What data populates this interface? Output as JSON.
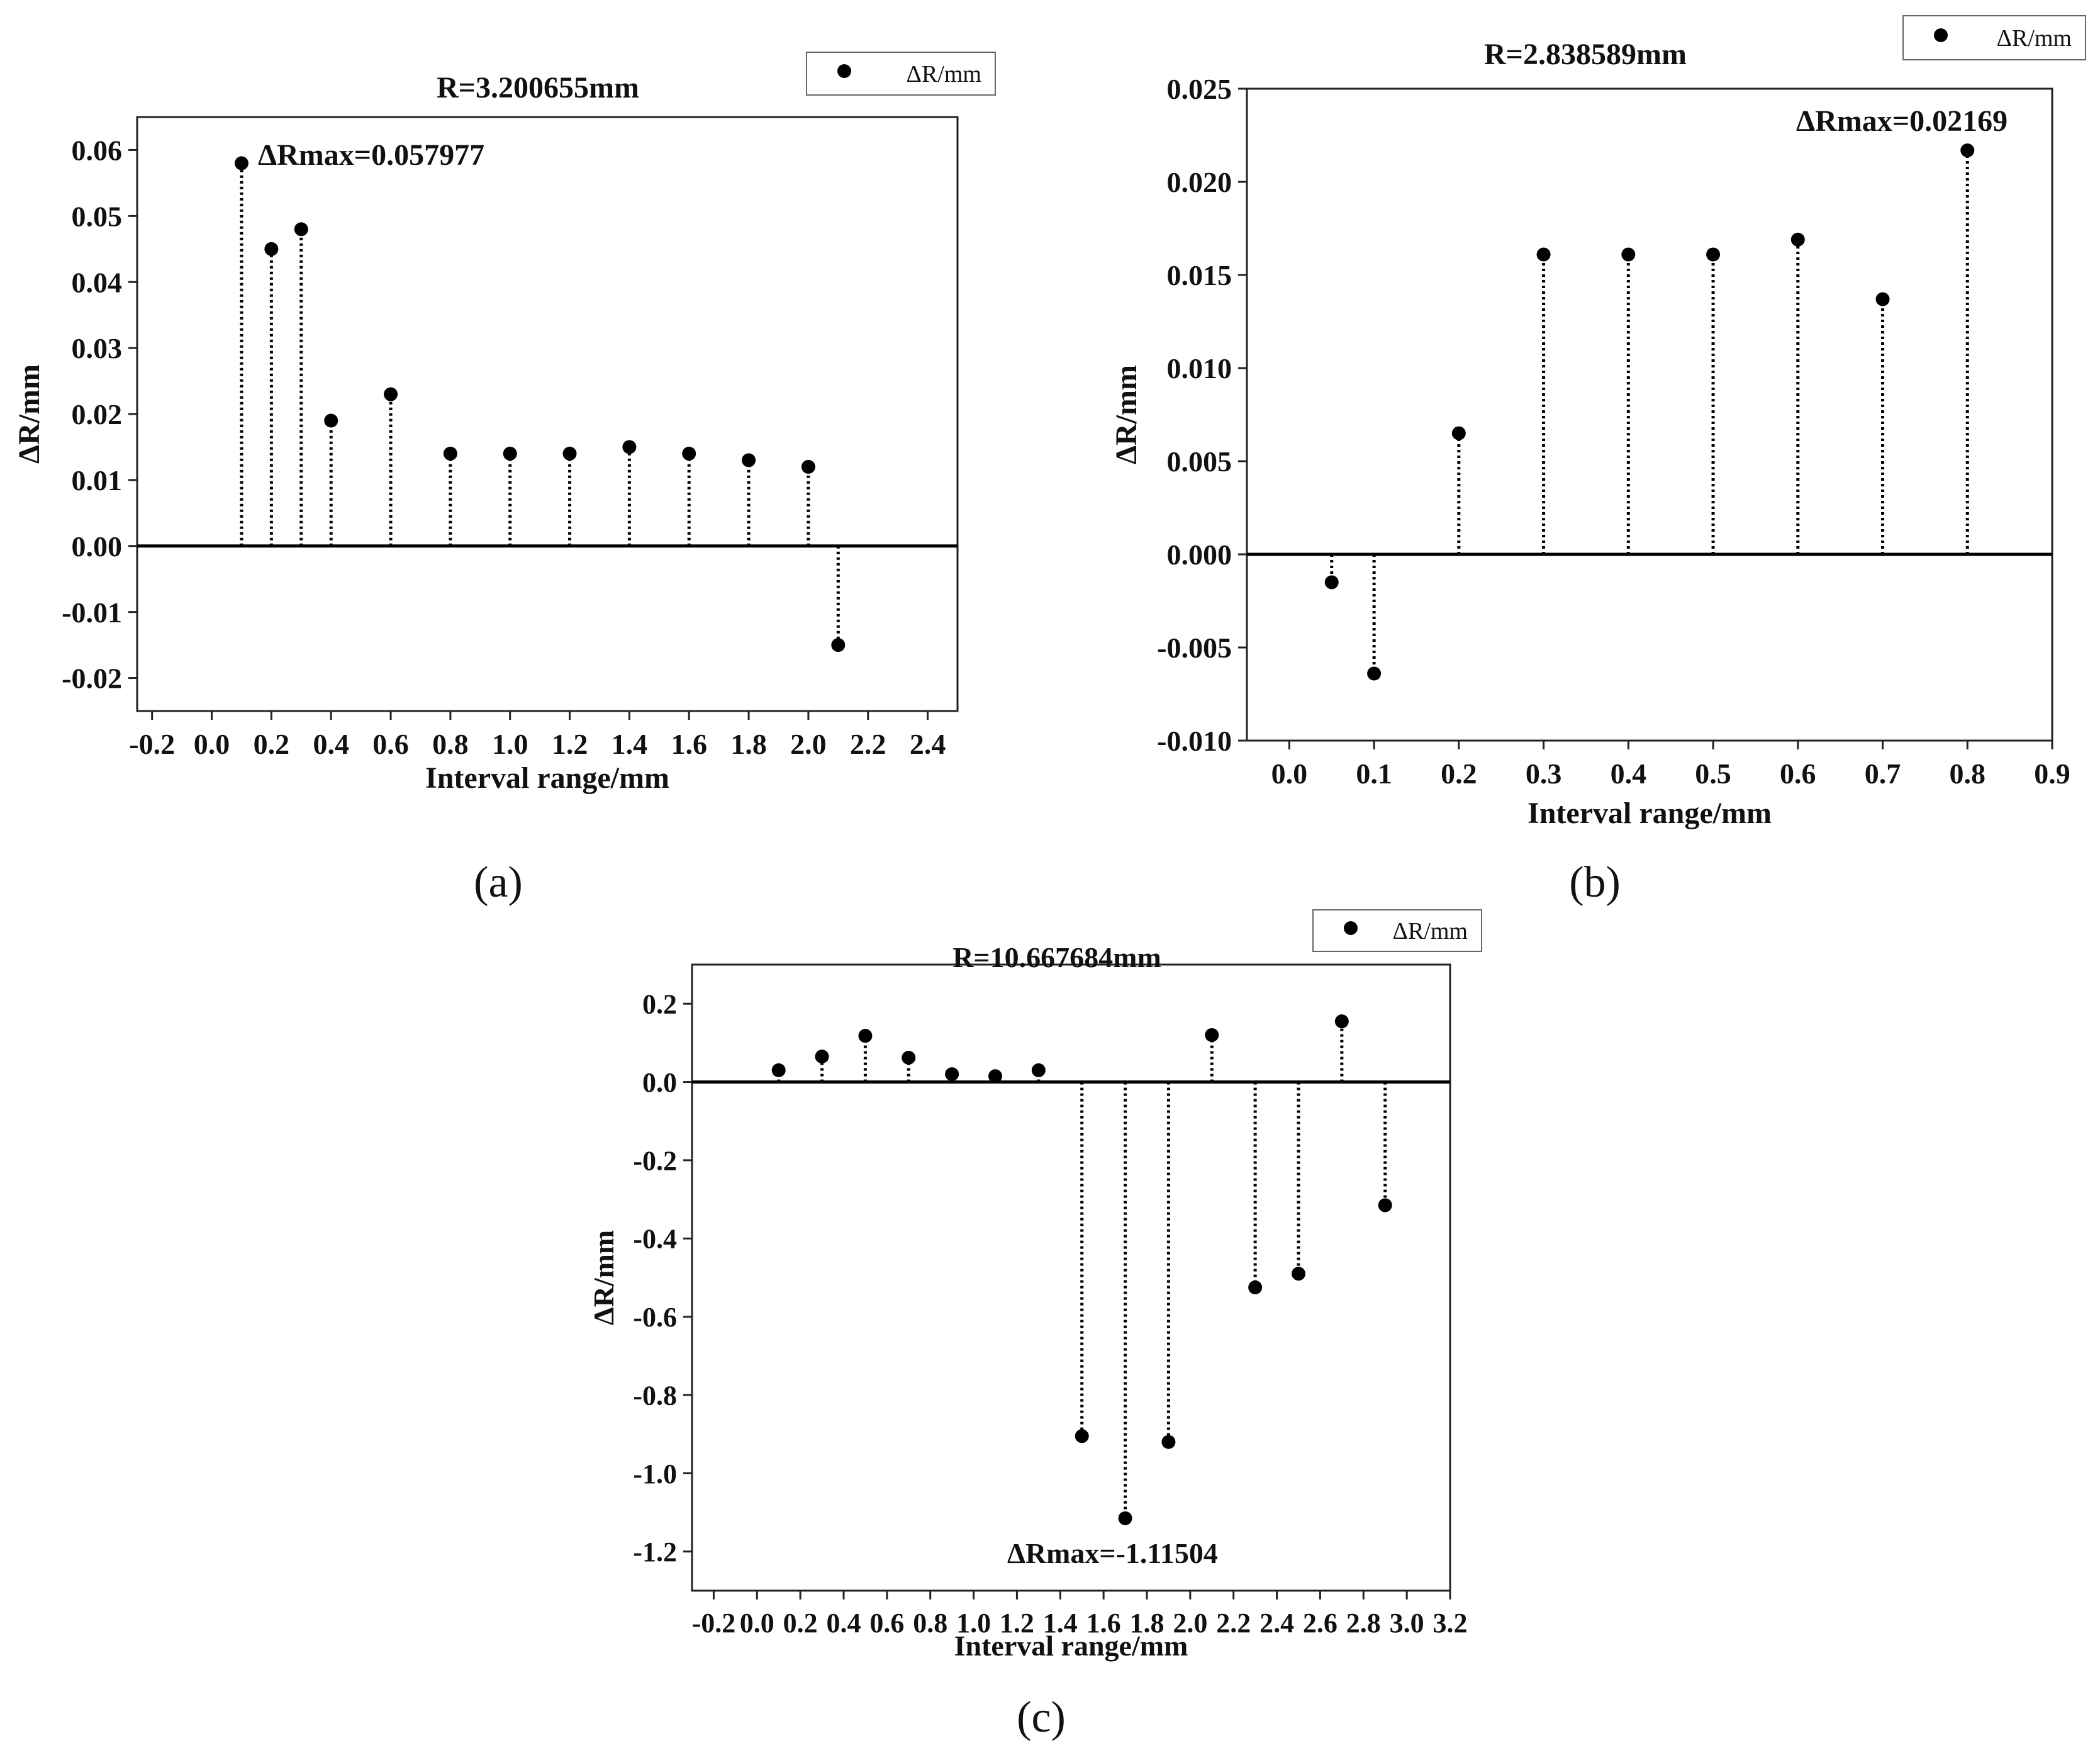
{
  "chart_data": [
    {
      "type": "scatter",
      "style": "dotted-stem",
      "title": "R=3.200655mm",
      "xlabel": "Interval range/mm",
      "ylabel": "ΔR/mm",
      "legend": "ΔR/mm",
      "legend_position": "top-right",
      "annotation": "ΔRmax=0.057977",
      "panel_label": "(a)",
      "xlim": [
        -0.25,
        2.5
      ],
      "ylim": [
        -0.025,
        0.065
      ],
      "xticks": [
        -0.2,
        0.0,
        0.2,
        0.4,
        0.6,
        0.8,
        1.0,
        1.2,
        1.4,
        1.6,
        1.8,
        2.0,
        2.2,
        2.4
      ],
      "xtick_labels": [
        "-0.2",
        "0.0",
        "0.2",
        "0.4",
        "0.6",
        "0.8",
        "1.0",
        "1.2",
        "1.4",
        "1.6",
        "1.8",
        "2.0",
        "2.2",
        "2.4"
      ],
      "yticks": [
        -0.02,
        -0.01,
        0.0,
        0.01,
        0.02,
        0.03,
        0.04,
        0.05,
        0.06
      ],
      "ytick_labels": [
        "-0.02",
        "-0.01",
        "0.00",
        "0.01",
        "0.02",
        "0.03",
        "0.04",
        "0.05",
        "0.06"
      ],
      "x": [
        0.1,
        0.2,
        0.3,
        0.4,
        0.6,
        0.8,
        1.0,
        1.2,
        1.4,
        1.6,
        1.8,
        2.0,
        2.1
      ],
      "y": [
        0.058,
        0.045,
        0.048,
        0.019,
        0.023,
        0.014,
        0.014,
        0.014,
        0.015,
        0.014,
        0.013,
        0.012,
        -0.015
      ]
    },
    {
      "type": "scatter",
      "style": "dotted-stem",
      "title": "R=2.838589mm",
      "xlabel": "Interval range/mm",
      "ylabel": "ΔR/mm",
      "legend": "ΔR/mm",
      "legend_position": "top-right",
      "annotation": "ΔRmax=0.02169",
      "panel_label": "(b)",
      "xlim": [
        -0.05,
        0.9
      ],
      "ylim": [
        -0.01,
        0.025
      ],
      "xticks": [
        0.0,
        0.1,
        0.2,
        0.3,
        0.4,
        0.5,
        0.6,
        0.7,
        0.8,
        0.9
      ],
      "xtick_labels": [
        "0.0",
        "0.1",
        "0.2",
        "0.3",
        "0.4",
        "0.5",
        "0.6",
        "0.7",
        "0.8",
        "0.9"
      ],
      "yticks": [
        -0.01,
        -0.005,
        0.0,
        0.005,
        0.01,
        0.015,
        0.02,
        0.025
      ],
      "ytick_labels": [
        "-0.010",
        "-0.005",
        "0.000",
        "0.005",
        "0.010",
        "0.015",
        "0.020",
        "0.025"
      ],
      "x": [
        0.05,
        0.1,
        0.2,
        0.3,
        0.4,
        0.5,
        0.6,
        0.7,
        0.8
      ],
      "y": [
        -0.0015,
        -0.0064,
        0.0065,
        0.0161,
        0.0161,
        0.0161,
        0.0169,
        0.0137,
        0.02169
      ]
    },
    {
      "type": "scatter",
      "style": "dotted-stem",
      "title": "R=10.667684mm",
      "xlabel": "Interval range/mm",
      "ylabel": "ΔR/mm",
      "legend": "ΔR/mm",
      "legend_position": "top-right",
      "annotation": "ΔRmax=-1.11504",
      "panel_label": "(c)",
      "xlim": [
        -0.3,
        3.2
      ],
      "ylim": [
        -1.3,
        0.3
      ],
      "xticks": [
        -0.2,
        0.0,
        0.2,
        0.4,
        0.6,
        0.8,
        1.0,
        1.2,
        1.4,
        1.6,
        1.8,
        2.0,
        2.2,
        2.4,
        2.6,
        2.8,
        3.0,
        3.2
      ],
      "xtick_labels": [
        "-0.2",
        "0.0",
        "0.2",
        "0.4",
        "0.6",
        "0.8",
        "1.0",
        "1.2",
        "1.4",
        "1.6",
        "1.8",
        "2.0",
        "2.2",
        "2.4",
        "2.6",
        "2.8",
        "3.0",
        "3.2"
      ],
      "yticks": [
        -1.2,
        -1.0,
        -0.8,
        -0.6,
        -0.4,
        -0.2,
        0.0,
        0.2
      ],
      "ytick_labels": [
        "-1.2",
        "-1.0",
        "-0.8",
        "-0.6",
        "-0.4",
        "-0.2",
        "0.0",
        "0.2"
      ],
      "x": [
        0.1,
        0.3,
        0.5,
        0.7,
        0.9,
        1.1,
        1.3,
        1.5,
        1.7,
        1.9,
        2.1,
        2.3,
        2.5,
        2.7,
        2.9
      ],
      "y": [
        0.03,
        0.065,
        0.118,
        0.062,
        0.02,
        0.015,
        0.03,
        -0.905,
        -1.115,
        -0.92,
        0.12,
        -0.525,
        -0.49,
        0.155,
        -0.315
      ]
    }
  ]
}
